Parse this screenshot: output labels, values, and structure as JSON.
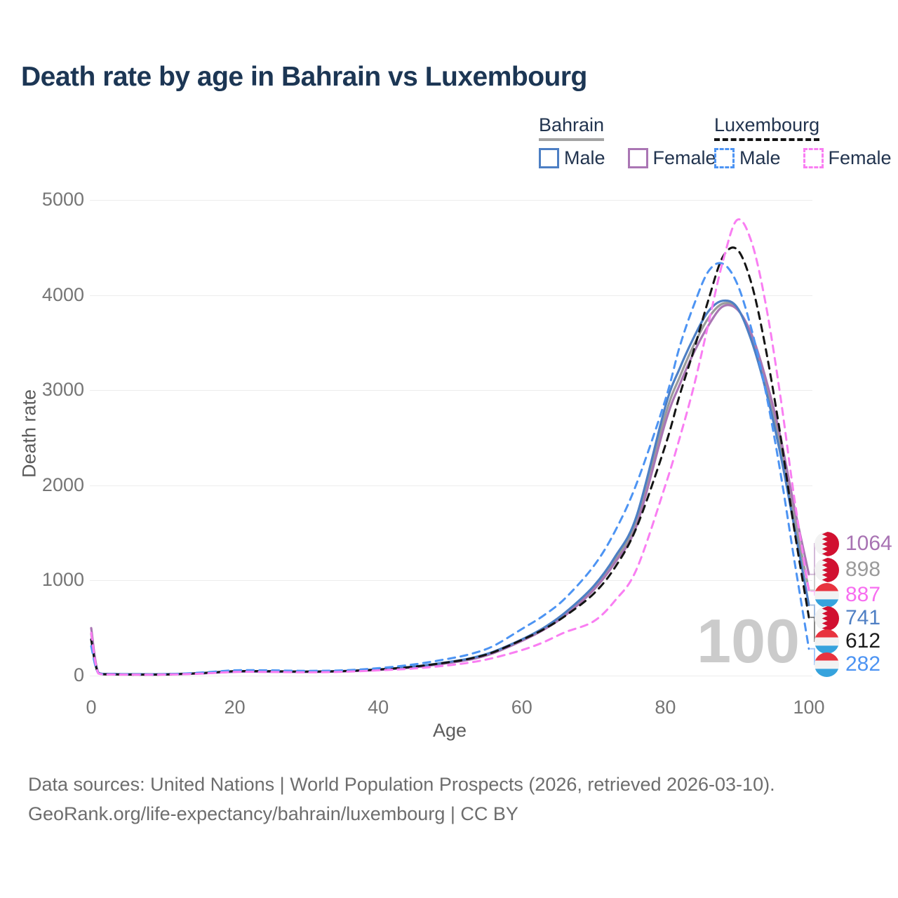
{
  "title": "Death rate by age in Bahrain vs Luxembourg",
  "age_counter": "100",
  "legend": {
    "bahrain": {
      "label": "Bahrain",
      "underline": "solid",
      "underline_color": "#a3a3a3",
      "items": [
        {
          "label": "Male",
          "color": "#4d7fc4",
          "dash": "solid"
        },
        {
          "label": "Female",
          "color": "#aa76b4",
          "dash": "solid"
        }
      ]
    },
    "luxembourg": {
      "label": "Luxembourg",
      "underline": "dashed",
      "underline_color": "#141414",
      "items": [
        {
          "label": "Male",
          "color": "#4d94f3",
          "dash": "dashed"
        },
        {
          "label": "Female",
          "color": "#f97ef2",
          "dash": "dashed"
        }
      ]
    }
  },
  "end_labels": {
    "items": [
      {
        "value": "1064",
        "flag": "bahrain",
        "color": "#a873b3"
      },
      {
        "value": "898",
        "flag": "bahrain",
        "color": "#9b9b9b"
      },
      {
        "value": "887",
        "flag": "luxembourg",
        "color": "#f76ef0"
      },
      {
        "value": "741",
        "flag": "bahrain",
        "color": "#5080c4"
      },
      {
        "value": "612",
        "flag": "luxembourg",
        "color": "#1b1b1b"
      },
      {
        "value": "282",
        "flag": "luxembourg",
        "color": "#4d94f3"
      }
    ]
  },
  "flags": {
    "bahrain": {
      "red": "#d11030",
      "white": "#f2f2f2"
    },
    "luxembourg": {
      "red": "#e8333f",
      "white": "#f2f2f2",
      "blue": "#36a3dd"
    }
  },
  "footer": {
    "line1": "Data sources: United Nations | World Population Prospects (2026, retrieved 2026-03-10).",
    "line2": "GeoRank.org/life-expectancy/bahrain/luxembourg | CC BY"
  },
  "chart_data": {
    "type": "line",
    "title": "Death rate by age in Bahrain vs Luxembourg",
    "xlabel": "Age",
    "ylabel": "Death rate",
    "xlim": [
      0,
      100
    ],
    "ylim": [
      0,
      5000
    ],
    "x_ticks": [
      0,
      20,
      40,
      60,
      80,
      100
    ],
    "y_ticks": [
      0,
      1000,
      2000,
      3000,
      4000,
      5000
    ],
    "grid": "horizontal",
    "legend_position": "top-right",
    "x": [
      0,
      1,
      3,
      5,
      10,
      15,
      20,
      25,
      30,
      35,
      40,
      45,
      50,
      53,
      56,
      60,
      63,
      66,
      70,
      73,
      76,
      80,
      82,
      84,
      86,
      88,
      90,
      92,
      94,
      96,
      98,
      100
    ],
    "series": [
      {
        "name": "Bahrain Both sexes",
        "country": "Bahrain",
        "sex": "Both",
        "color": "#9b9b9b",
        "dash": "solid",
        "slot": 1,
        "end_value": 898,
        "values": [
          440,
          29,
          17,
          13,
          13,
          23,
          42,
          42,
          40,
          46,
          62,
          91,
          140,
          178,
          242,
          372,
          490,
          645,
          920,
          1220,
          1630,
          2740,
          3140,
          3480,
          3760,
          3910,
          3860,
          3560,
          3060,
          2430,
          1650,
          898
        ]
      },
      {
        "name": "Bahrain Female",
        "country": "Bahrain",
        "sex": "Female",
        "color": "#aa76b4",
        "dash": "solid",
        "slot": 0,
        "end_value": 1064,
        "values": [
          500,
          28,
          16,
          12,
          12,
          22,
          40,
          40,
          38,
          44,
          60,
          88,
          135,
          172,
          235,
          365,
          480,
          630,
          900,
          1190,
          1580,
          2660,
          3060,
          3400,
          3680,
          3880,
          3850,
          3590,
          3120,
          2520,
          1760,
          1064
        ]
      },
      {
        "name": "Bahrain Male",
        "country": "Bahrain",
        "sex": "Male",
        "color": "#4d7fc4",
        "dash": "solid",
        "slot": 3,
        "end_value": 741,
        "values": [
          380,
          30,
          18,
          15,
          15,
          25,
          45,
          45,
          42,
          48,
          65,
          95,
          145,
          185,
          250,
          380,
          500,
          660,
          940,
          1250,
          1680,
          2830,
          3230,
          3560,
          3830,
          3940,
          3870,
          3520,
          3000,
          2340,
          1550,
          741
        ]
      },
      {
        "name": "Luxembourg Both sexes",
        "country": "Luxembourg",
        "sex": "Both",
        "color": "#141414",
        "dash": "dashed",
        "slot": 4,
        "end_value": 612,
        "values": [
          380,
          24,
          13,
          11,
          11,
          25,
          46,
          46,
          42,
          47,
          64,
          94,
          142,
          182,
          245,
          375,
          485,
          625,
          860,
          1140,
          1560,
          2420,
          2950,
          3430,
          3950,
          4400,
          4480,
          4120,
          3430,
          2540,
          1520,
          612
        ]
      },
      {
        "name": "Luxembourg Male",
        "country": "Luxembourg",
        "sex": "Male",
        "color": "#4d94f3",
        "dash": "dashed",
        "slot": 5,
        "end_value": 282,
        "values": [
          310,
          25,
          14,
          12,
          12,
          30,
          55,
          55,
          50,
          55,
          78,
          118,
          180,
          230,
          310,
          490,
          630,
          810,
          1150,
          1520,
          2020,
          2900,
          3460,
          3900,
          4250,
          4330,
          4120,
          3640,
          2980,
          2150,
          1200,
          282
        ]
      },
      {
        "name": "Luxembourg Female",
        "country": "Luxembourg",
        "sex": "Female",
        "color": "#f97ef2",
        "dash": "dashed",
        "slot": 2,
        "end_value": 887,
        "values": [
          450,
          22,
          12,
          10,
          10,
          20,
          38,
          38,
          35,
          40,
          55,
          75,
          110,
          140,
          185,
          268,
          350,
          455,
          570,
          790,
          1120,
          2000,
          2500,
          3050,
          3700,
          4350,
          4790,
          4560,
          3900,
          2950,
          1850,
          887
        ]
      }
    ]
  }
}
